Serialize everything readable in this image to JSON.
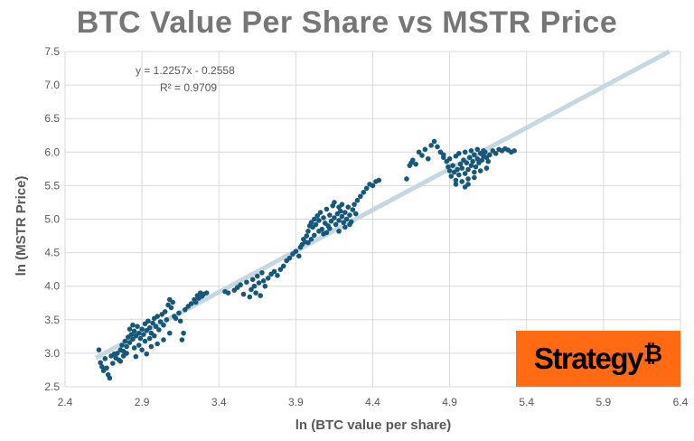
{
  "title": "BTC Value Per Share vs MSTR Price",
  "logo": {
    "text": "Strategy",
    "symbol": "₿",
    "background": "#ff6a13"
  },
  "trendline": {
    "equation": "y = 1.2257x - 0.2558",
    "r2": "R² = 0.9709",
    "slope": 1.2257,
    "intercept": -0.2558,
    "color": "#c5d7e3"
  },
  "chart_data": {
    "type": "scatter",
    "title": "BTC Value Per Share vs MSTR Price",
    "xlabel": "ln (BTC value per share)",
    "ylabel": "ln (MSTR Price)",
    "xlim": [
      2.4,
      6.4
    ],
    "ylim": [
      2.5,
      7.5
    ],
    "xticks": [
      "2.4",
      "2.9",
      "3.4",
      "3.9",
      "4.4",
      "4.9",
      "5.4",
      "5.9",
      "6.4"
    ],
    "yticks": [
      "2.5",
      "3.0",
      "3.5",
      "4.0",
      "4.5",
      "5.0",
      "5.5",
      "6.0",
      "6.5",
      "7.0",
      "7.5"
    ],
    "grid": true,
    "point_color": "#17587a",
    "series": [
      {
        "points": [
          [
            2.62,
            3.05
          ],
          [
            2.63,
            2.86
          ],
          [
            2.64,
            2.8
          ],
          [
            2.65,
            2.74
          ],
          [
            2.66,
            2.92
          ],
          [
            2.67,
            2.78
          ],
          [
            2.68,
            2.68
          ],
          [
            2.69,
            2.63
          ],
          [
            2.7,
            2.96
          ],
          [
            2.71,
            2.85
          ],
          [
            2.72,
            2.99
          ],
          [
            2.73,
            2.93
          ],
          [
            2.74,
            3.0
          ],
          [
            2.75,
            2.9
          ],
          [
            2.76,
            3.05
          ],
          [
            2.77,
            3.12
          ],
          [
            2.78,
            3.03
          ],
          [
            2.79,
            3.18
          ],
          [
            2.8,
            3.1
          ],
          [
            2.81,
            3.24
          ],
          [
            2.82,
            3.16
          ],
          [
            2.83,
            3.28
          ],
          [
            2.84,
            3.21
          ],
          [
            2.85,
            3.33
          ],
          [
            2.86,
            3.26
          ],
          [
            2.87,
            3.4
          ],
          [
            2.88,
            3.3
          ],
          [
            2.89,
            3.22
          ],
          [
            2.9,
            3.36
          ],
          [
            2.91,
            3.28
          ],
          [
            2.92,
            3.44
          ],
          [
            2.93,
            3.34
          ],
          [
            2.94,
            3.48
          ],
          [
            2.95,
            3.38
          ],
          [
            2.96,
            3.3
          ],
          [
            2.97,
            3.45
          ],
          [
            2.98,
            3.52
          ],
          [
            2.99,
            3.4
          ],
          [
            3.0,
            3.55
          ],
          [
            3.01,
            3.35
          ],
          [
            3.02,
            3.47
          ],
          [
            3.03,
            3.58
          ],
          [
            3.04,
            3.42
          ],
          [
            3.05,
            3.62
          ],
          [
            3.06,
            3.5
          ],
          [
            3.07,
            3.72
          ],
          [
            3.08,
            3.8
          ],
          [
            3.09,
            3.68
          ],
          [
            3.1,
            3.76
          ],
          [
            3.11,
            3.55
          ],
          [
            2.8,
            3.0
          ],
          [
            2.85,
            3.08
          ],
          [
            2.88,
            3.12
          ],
          [
            2.92,
            3.18
          ],
          [
            2.95,
            3.22
          ],
          [
            2.98,
            3.26
          ],
          [
            2.84,
            3.42
          ],
          [
            2.86,
            2.95
          ],
          [
            2.9,
            3.05
          ],
          [
            2.93,
            2.99
          ],
          [
            2.96,
            3.1
          ],
          [
            3.0,
            3.14
          ],
          [
            3.04,
            3.2
          ],
          [
            3.08,
            3.3
          ],
          [
            2.76,
            2.88
          ],
          [
            2.78,
            2.96
          ],
          [
            2.82,
            3.36
          ],
          [
            3.15,
            3.48
          ],
          [
            3.16,
            3.2
          ],
          [
            3.17,
            3.3
          ],
          [
            3.12,
            3.52
          ],
          [
            3.14,
            3.6
          ],
          [
            3.18,
            3.65
          ],
          [
            3.2,
            3.7
          ],
          [
            3.22,
            3.74
          ],
          [
            3.24,
            3.8
          ],
          [
            3.26,
            3.86
          ],
          [
            3.28,
            3.9
          ],
          [
            3.3,
            3.88
          ],
          [
            3.32,
            3.9
          ],
          [
            3.25,
            3.76
          ],
          [
            3.27,
            3.82
          ],
          [
            3.29,
            3.85
          ],
          [
            3.44,
            3.92
          ],
          [
            3.46,
            3.9
          ],
          [
            3.5,
            3.94
          ],
          [
            3.52,
            3.98
          ],
          [
            3.54,
            4.02
          ],
          [
            3.56,
            3.88
          ],
          [
            3.58,
            4.06
          ],
          [
            3.6,
            3.84
          ],
          [
            3.61,
            3.95
          ],
          [
            3.62,
            4.1
          ],
          [
            3.63,
            4.0
          ],
          [
            3.64,
            3.9
          ],
          [
            3.65,
            4.15
          ],
          [
            3.66,
            4.05
          ],
          [
            3.67,
            3.86
          ],
          [
            3.68,
            4.2
          ],
          [
            3.69,
            4.08
          ],
          [
            3.7,
            4.0
          ],
          [
            3.72,
            4.12
          ],
          [
            3.74,
            4.18
          ],
          [
            3.76,
            4.22
          ],
          [
            3.78,
            4.16
          ],
          [
            3.8,
            4.25
          ],
          [
            3.82,
            4.3
          ],
          [
            3.84,
            4.38
          ],
          [
            3.86,
            4.42
          ],
          [
            3.88,
            4.48
          ],
          [
            3.9,
            4.52
          ],
          [
            3.92,
            4.45
          ],
          [
            3.93,
            4.58
          ],
          [
            3.94,
            4.62
          ],
          [
            3.95,
            4.7
          ],
          [
            3.96,
            4.66
          ],
          [
            3.97,
            4.75
          ],
          [
            3.98,
            4.82
          ],
          [
            3.99,
            4.9
          ],
          [
            4.0,
            4.95
          ],
          [
            4.01,
            4.88
          ],
          [
            4.02,
            5.0
          ],
          [
            4.03,
            4.92
          ],
          [
            4.04,
            5.05
          ],
          [
            4.05,
            4.98
          ],
          [
            4.06,
            5.1
          ],
          [
            4.07,
            4.85
          ],
          [
            4.08,
            5.02
          ],
          [
            4.09,
            4.94
          ],
          [
            4.1,
            5.15
          ],
          [
            4.11,
            4.9
          ],
          [
            4.12,
            5.06
          ],
          [
            4.13,
            4.97
          ],
          [
            4.14,
            5.2
          ],
          [
            4.15,
            5.02
          ],
          [
            4.16,
            4.92
          ],
          [
            4.17,
            5.08
          ],
          [
            4.18,
            4.98
          ],
          [
            4.19,
            5.12
          ],
          [
            4.2,
            5.04
          ],
          [
            4.21,
            4.95
          ],
          [
            4.22,
            5.1
          ],
          [
            4.23,
            5.0
          ],
          [
            4.24,
            5.18
          ],
          [
            4.25,
            5.06
          ],
          [
            4.26,
            4.96
          ],
          [
            4.27,
            5.14
          ],
          [
            4.28,
            5.22
          ],
          [
            4.29,
            5.08
          ],
          [
            4.3,
            5.28
          ],
          [
            4.32,
            5.34
          ],
          [
            4.34,
            5.4
          ],
          [
            4.36,
            5.46
          ],
          [
            4.38,
            5.52
          ],
          [
            4.4,
            5.5
          ],
          [
            4.42,
            5.56
          ],
          [
            4.44,
            5.58
          ],
          [
            4.05,
            4.82
          ],
          [
            4.08,
            4.78
          ],
          [
            4.0,
            4.7
          ],
          [
            4.15,
            5.25
          ],
          [
            4.18,
            5.18
          ],
          [
            4.2,
            5.22
          ],
          [
            4.12,
            4.86
          ],
          [
            4.25,
            4.92
          ],
          [
            4.22,
            4.88
          ],
          [
            4.18,
            4.82
          ],
          [
            4.1,
            4.8
          ],
          [
            4.02,
            4.76
          ],
          [
            3.98,
            4.65
          ],
          [
            4.62,
            5.6
          ],
          [
            4.64,
            5.8
          ],
          [
            4.65,
            5.84
          ],
          [
            4.66,
            5.88
          ],
          [
            4.68,
            5.82
          ],
          [
            4.74,
            6.04
          ],
          [
            4.78,
            6.1
          ],
          [
            4.8,
            6.16
          ],
          [
            4.82,
            6.08
          ],
          [
            4.84,
            6.0
          ],
          [
            4.86,
            5.92
          ],
          [
            4.88,
            5.86
          ],
          [
            4.89,
            5.78
          ],
          [
            4.9,
            5.72
          ],
          [
            4.91,
            5.64
          ],
          [
            4.92,
            5.8
          ],
          [
            4.93,
            5.7
          ],
          [
            4.94,
            5.58
          ],
          [
            4.95,
            5.74
          ],
          [
            4.96,
            5.66
          ],
          [
            4.97,
            5.82
          ],
          [
            4.98,
            5.76
          ],
          [
            4.99,
            5.88
          ],
          [
            5.0,
            5.68
          ],
          [
            5.01,
            5.84
          ],
          [
            5.02,
            5.74
          ],
          [
            5.03,
            5.92
          ],
          [
            5.04,
            5.8
          ],
          [
            5.05,
            5.86
          ],
          [
            5.06,
            5.96
          ],
          [
            5.07,
            5.78
          ],
          [
            5.08,
            5.9
          ],
          [
            5.09,
            5.84
          ],
          [
            5.1,
            5.98
          ],
          [
            5.11,
            5.88
          ],
          [
            5.12,
            5.94
          ],
          [
            5.13,
            6.0
          ],
          [
            5.14,
            5.92
          ],
          [
            5.15,
            5.86
          ],
          [
            5.16,
            5.96
          ],
          [
            5.18,
            6.02
          ],
          [
            5.2,
            5.98
          ],
          [
            5.22,
            6.04
          ],
          [
            5.24,
            6.02
          ],
          [
            5.26,
            6.05
          ],
          [
            5.28,
            6.03
          ],
          [
            5.3,
            6.0
          ],
          [
            5.32,
            6.02
          ],
          [
            4.94,
            5.52
          ],
          [
            4.98,
            5.56
          ],
          [
            5.02,
            5.6
          ],
          [
            5.06,
            5.62
          ],
          [
            4.9,
            5.9
          ],
          [
            4.94,
            5.94
          ],
          [
            5.0,
            6.0
          ],
          [
            5.04,
            6.02
          ],
          [
            5.08,
            6.04
          ],
          [
            5.12,
            6.02
          ],
          [
            4.96,
            5.98
          ],
          [
            5.0,
            5.48
          ],
          [
            4.72,
            5.95
          ],
          [
            4.76,
            5.9
          ],
          [
            4.7,
            6.0
          ],
          [
            4.86,
            5.96
          ],
          [
            5.1,
            5.72
          ],
          [
            5.14,
            5.76
          ],
          [
            5.06,
            5.7
          ],
          [
            5.02,
            5.52
          ]
        ]
      }
    ]
  }
}
